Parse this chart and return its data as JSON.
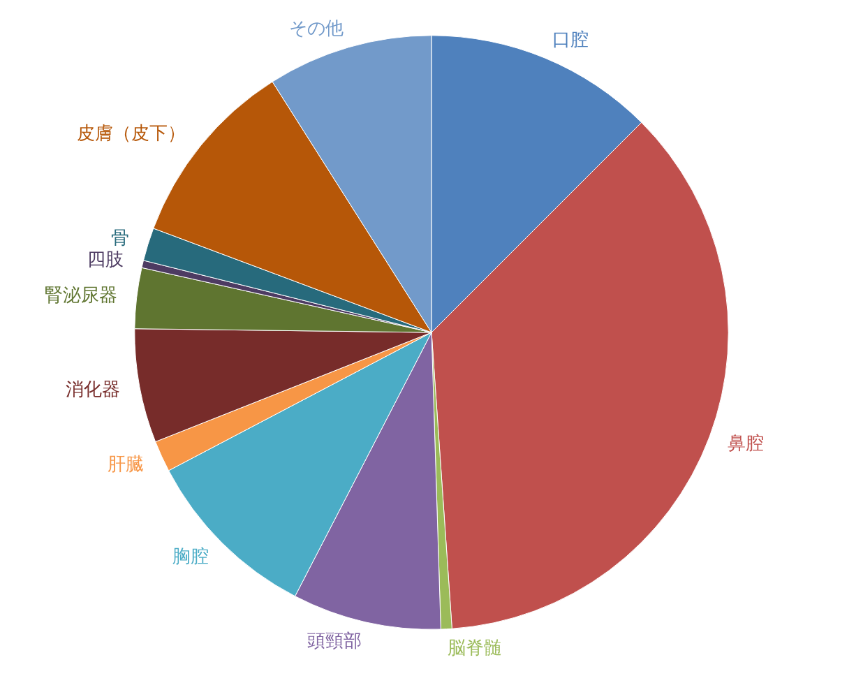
{
  "chart_data": {
    "type": "pie",
    "categories": [
      "口腔",
      "鼻腔",
      "脳脊髄",
      "頭頸部",
      "胸腔",
      "肝臓",
      "消化器",
      "腎泌尿器",
      "四肢",
      "骨",
      "皮膚（皮下）",
      "その他"
    ],
    "values": [
      12.5,
      36.4,
      0.6,
      8.1,
      9.7,
      1.7,
      6.2,
      3.3,
      0.4,
      1.8,
      10.3,
      9.0
    ],
    "colors": [
      "#4f81bd",
      "#c0504d",
      "#9bbb59",
      "#8064a2",
      "#4bacc6",
      "#f79646",
      "#772c2a",
      "#5f7530",
      "#4d3b62",
      "#276a7c",
      "#b65708",
      "#729aca"
    ]
  }
}
